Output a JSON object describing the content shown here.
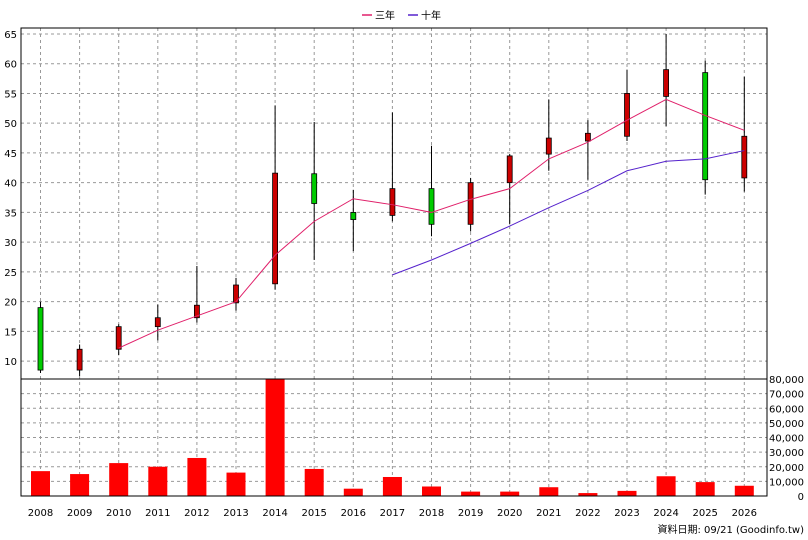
{
  "chart_data": [
    {
      "type": "candlestick",
      "x": [
        "2008",
        "2009",
        "2010",
        "2011",
        "2012",
        "2013",
        "2014",
        "2015",
        "2016",
        "2017",
        "2018",
        "2019",
        "2020",
        "2021",
        "2022",
        "2023",
        "2024",
        "2025",
        "2026"
      ],
      "ylim": [
        7,
        66
      ],
      "yticks": [
        10,
        15,
        20,
        25,
        30,
        35,
        40,
        45,
        50,
        55,
        60,
        65
      ],
      "grid": true,
      "legend_position": "top-center",
      "up_color": "#00cc00",
      "down_color": "#cc0000",
      "candles": [
        {
          "year": "2008",
          "open": 19.0,
          "close": 8.5,
          "high": 20.0,
          "low": 8.0
        },
        {
          "year": "2009",
          "open": 8.5,
          "close": 12.0,
          "high": 12.8,
          "low": 7.5
        },
        {
          "year": "2010",
          "open": 12.0,
          "close": 15.8,
          "high": 16.2,
          "low": 11.0
        },
        {
          "year": "2011",
          "open": 15.8,
          "close": 17.3,
          "high": 19.5,
          "low": 13.5
        },
        {
          "year": "2012",
          "open": 17.3,
          "close": 19.4,
          "high": 26.0,
          "low": 16.5
        },
        {
          "year": "2013",
          "open": 19.8,
          "close": 22.8,
          "high": 24.0,
          "low": 18.5
        },
        {
          "year": "2014",
          "open": 23.0,
          "close": 41.6,
          "high": 53.0,
          "low": 22.0
        },
        {
          "year": "2015",
          "open": 41.5,
          "close": 36.5,
          "high": 50.2,
          "low": 27.0
        },
        {
          "year": "2016",
          "open": 35.0,
          "close": 33.8,
          "high": 38.8,
          "low": 28.5
        },
        {
          "year": "2017",
          "open": 34.5,
          "close": 39.0,
          "high": 51.8,
          "low": 33.5
        },
        {
          "year": "2018",
          "open": 39.0,
          "close": 33.0,
          "high": 46.2,
          "low": 31.0
        },
        {
          "year": "2019",
          "open": 33.0,
          "close": 40.0,
          "high": 40.8,
          "low": 31.8
        },
        {
          "year": "2020",
          "open": 40.0,
          "close": 44.5,
          "high": 44.8,
          "low": 33.0
        },
        {
          "year": "2021",
          "open": 44.8,
          "close": 47.5,
          "high": 54.0,
          "low": 42.0
        },
        {
          "year": "2022",
          "open": 47.0,
          "close": 48.3,
          "high": 50.5,
          "low": 40.5
        },
        {
          "year": "2023",
          "open": 47.8,
          "close": 55.0,
          "high": 59.0,
          "low": 47.0
        },
        {
          "year": "2024",
          "open": 54.5,
          "close": 59.0,
          "high": 65.0,
          "low": 49.5
        },
        {
          "year": "2025",
          "open": 58.5,
          "close": 40.5,
          "high": 60.5,
          "low": 38.0
        },
        {
          "year": "2026",
          "open": 40.8,
          "close": 47.8,
          "high": 57.8,
          "low": 38.5
        }
      ],
      "series": [
        {
          "name": "三年",
          "color": "#e0206a",
          "x": [
            "2010",
            "2011",
            "2012",
            "2013",
            "2014",
            "2015",
            "2016",
            "2017",
            "2018",
            "2019",
            "2020",
            "2021",
            "2022",
            "2023",
            "2024",
            "2025",
            "2026"
          ],
          "values": [
            12.2,
            15.2,
            17.6,
            20.0,
            27.8,
            33.5,
            37.3,
            36.3,
            35.0,
            37.2,
            39.0,
            44.0,
            46.8,
            50.5,
            54.0,
            51.3,
            48.8
          ]
        },
        {
          "name": "十年",
          "color": "#5522cc",
          "x": [
            "2017",
            "2018",
            "2019",
            "2020",
            "2021",
            "2022",
            "2023",
            "2024",
            "2025",
            "2026"
          ],
          "values": [
            24.5,
            27.0,
            29.8,
            32.7,
            35.8,
            38.7,
            42.0,
            43.6,
            44.0,
            45.4
          ]
        }
      ]
    },
    {
      "type": "bar",
      "categories": [
        "2008",
        "2009",
        "2010",
        "2011",
        "2012",
        "2013",
        "2014",
        "2015",
        "2016",
        "2017",
        "2018",
        "2019",
        "2020",
        "2021",
        "2022",
        "2023",
        "2024",
        "2025",
        "2026"
      ],
      "values": [
        17000,
        15000,
        22500,
        20000,
        26000,
        16000,
        82000,
        18500,
        5000,
        13000,
        6500,
        3000,
        3000,
        6000,
        2000,
        3500,
        13500,
        9500,
        7000
      ],
      "ylim": [
        0,
        80000
      ],
      "yticks": [
        "0",
        "10,000",
        "20,000",
        "30,000",
        "40,000",
        "50,000",
        "60,000",
        "70,000",
        "80,000"
      ],
      "color": "#ff0000",
      "grid": true
    }
  ],
  "legend": {
    "items": [
      "三年",
      "十年"
    ]
  },
  "footer": {
    "source_text": "資料日期: 09/21 (Goodinfo.tw)"
  },
  "colors": {
    "grid": "#999999",
    "frame": "#000000",
    "background": "#ffffff"
  }
}
